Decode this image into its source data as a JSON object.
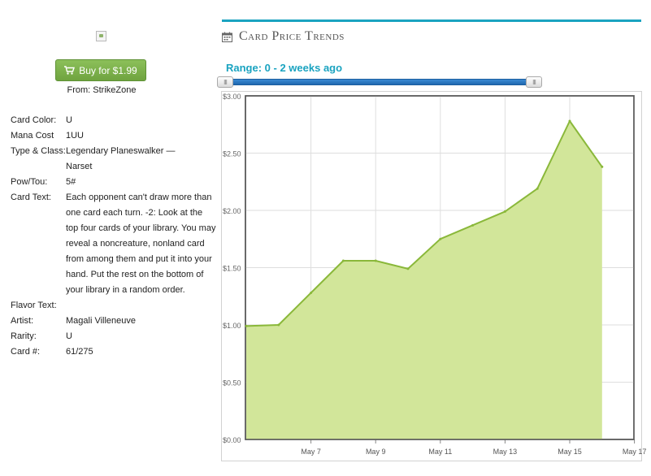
{
  "purchase": {
    "buy_label": "Buy for $1.99",
    "from_label": "From: StrikeZone"
  },
  "card": {
    "fields": [
      {
        "key": "Card Color:",
        "value": "U"
      },
      {
        "key": "Mana Cost",
        "value": "1UU"
      },
      {
        "key": "Type & Class:",
        "value": "Legendary Planeswalker — Narset"
      },
      {
        "key": "Pow/Tou:",
        "value": "5#"
      },
      {
        "key": "Card Text:",
        "value": "Each opponent can't draw more than one card each turn. -2: Look at the top four cards of your library. You may reveal a noncreature, nonland card from among them and put it into your hand. Put the rest on the bottom of your library in a random order."
      },
      {
        "key": "Flavor Text:",
        "value": ""
      },
      {
        "key": "Artist:",
        "value": "Magali Villeneuve"
      },
      {
        "key": "Rarity:",
        "value": "U"
      },
      {
        "key": "Card #:",
        "value": "61/275"
      }
    ]
  },
  "panel": {
    "title": "Card Price Trends",
    "range_label": "Range: 0 - 2 weeks ago",
    "slider_left_grip": "III",
    "slider_right_grip": "III",
    "accent_color": "#1aa3c0"
  },
  "chart_data": {
    "type": "area",
    "x": [
      "May 5",
      "May 6",
      "May 7",
      "May 8",
      "May 9",
      "May 10",
      "May 11",
      "May 12",
      "May 13",
      "May 14",
      "May 15",
      "May 16"
    ],
    "values": [
      0.99,
      1.0,
      1.28,
      1.56,
      1.56,
      1.49,
      1.75,
      1.87,
      1.99,
      2.19,
      2.78,
      2.38
    ],
    "x_ticks": [
      "May 7",
      "May 9",
      "May 11",
      "May 13",
      "May 15",
      "May 17"
    ],
    "y_ticks": [
      "$0.00",
      "$0.50",
      "$1.00",
      "$1.50",
      "$2.00",
      "$2.50",
      "$3.00"
    ],
    "ylim": [
      0,
      3
    ],
    "grid": true,
    "fill_color": "#d2e69a",
    "line_color": "#8ab83a"
  }
}
